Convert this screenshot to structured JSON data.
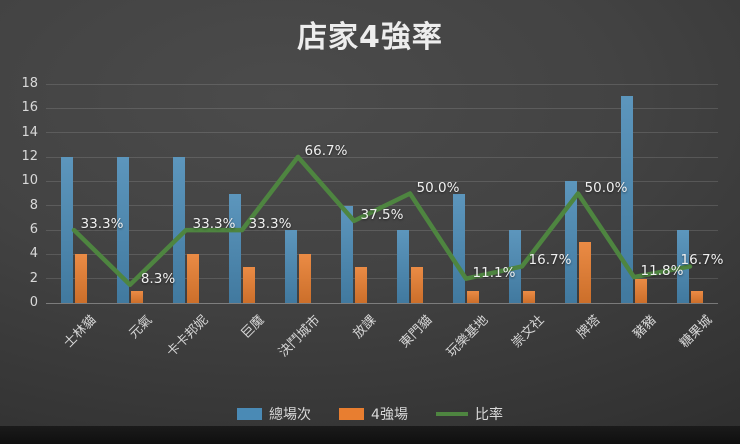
{
  "title": "店家4強率",
  "legend": {
    "items": [
      {
        "label": "總場次",
        "color": "#4A8AB5",
        "marker": "rect"
      },
      {
        "label": "4強場",
        "color": "#E87E30",
        "marker": "rect"
      },
      {
        "label": "比率",
        "color": "#4E8540",
        "marker": "line"
      }
    ]
  },
  "chart_data": {
    "type": "bar",
    "subtype": "combo-bar-line",
    "title": "店家4強率",
    "categories": [
      "士林貓",
      "元氣",
      "卡卡邦妮",
      "巨魔",
      "決鬥城市",
      "放課",
      "東門貓",
      "玩樂基地",
      "崇文社",
      "牌塔",
      "豬豬",
      "糖果城"
    ],
    "series": [
      {
        "name": "總場次",
        "type": "bar",
        "color": "#4A8AB5",
        "values": [
          12,
          12,
          12,
          9,
          6,
          8,
          6,
          9,
          6,
          10,
          17,
          6
        ]
      },
      {
        "name": "4強場",
        "type": "bar",
        "color": "#E87E30",
        "values": [
          4,
          1,
          4,
          3,
          4,
          3,
          3,
          1,
          1,
          5,
          2,
          1
        ]
      },
      {
        "name": "比率",
        "type": "line",
        "color": "#4E8540",
        "values_percent": [
          33.3,
          8.3,
          33.3,
          33.3,
          66.7,
          37.5,
          50.0,
          11.1,
          16.7,
          50.0,
          11.8,
          16.7
        ],
        "labels": [
          "33.3%",
          "8.3%",
          "33.3%",
          "33.3%",
          "66.7%",
          "37.5%",
          "50.0%",
          "11.1%",
          "16.7%",
          "50.0%",
          "11.8%",
          "16.7%"
        ],
        "percent_axis_note": "100% maps to 18 on the primary axis"
      }
    ],
    "y_axis": {
      "min": 0,
      "max": 18,
      "step": 2
    },
    "grid": true,
    "legend_position": "bottom"
  },
  "colors": {
    "background_center": "#4B4B4B",
    "background_edge": "#262626",
    "text": "#D9D9D9",
    "title_text": "#EDEDED",
    "gridline": "rgba(217,217,217,0.16)",
    "footer": "#121212"
  }
}
